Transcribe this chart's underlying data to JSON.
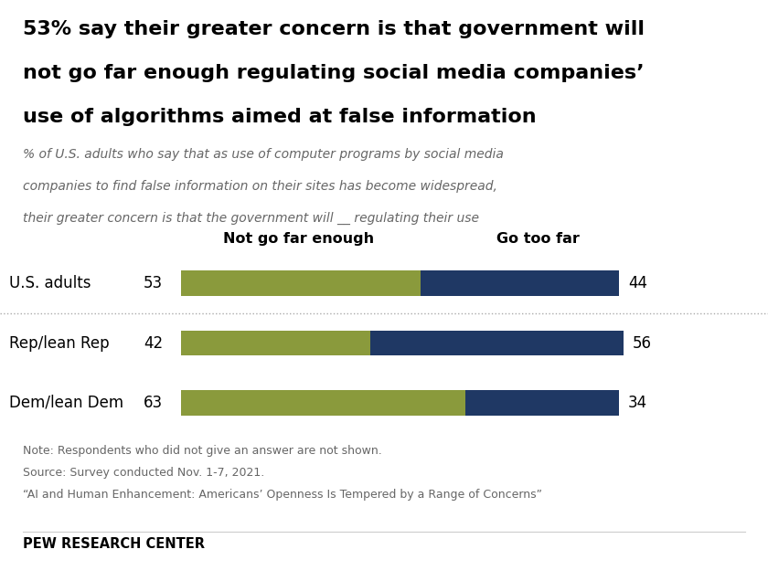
{
  "title_line1": "53% say their greater concern is that government will",
  "title_line2": "not go far enough regulating social media companies’",
  "title_line3": "use of algorithms aimed at false information",
  "subtitle_line1": "% of U.S. adults who say that as use of computer programs by social media",
  "subtitle_line2": "companies to find false information on their sites has become widespread,",
  "subtitle_line3": "their greater concern is that the government will __ regulating their use",
  "categories": [
    "U.S. adults",
    "Rep/lean Rep",
    "Dem/lean Dem"
  ],
  "not_far_enough": [
    53,
    42,
    63
  ],
  "go_too_far": [
    44,
    56,
    34
  ],
  "color_not_far": "#8a9a3c",
  "color_too_far": "#1f3864",
  "header_not_far": "Not go far enough",
  "header_too_far": "Go too far",
  "note1": "Note: Respondents who did not give an answer are not shown.",
  "note2": "Source: Survey conducted Nov. 1-7, 2021.",
  "note3": "“AI and Human Enhancement: Americans’ Openness Is Tempered by a Range of Concerns”",
  "footer": "PEW RESEARCH CENTER",
  "bg_color": "#ffffff"
}
